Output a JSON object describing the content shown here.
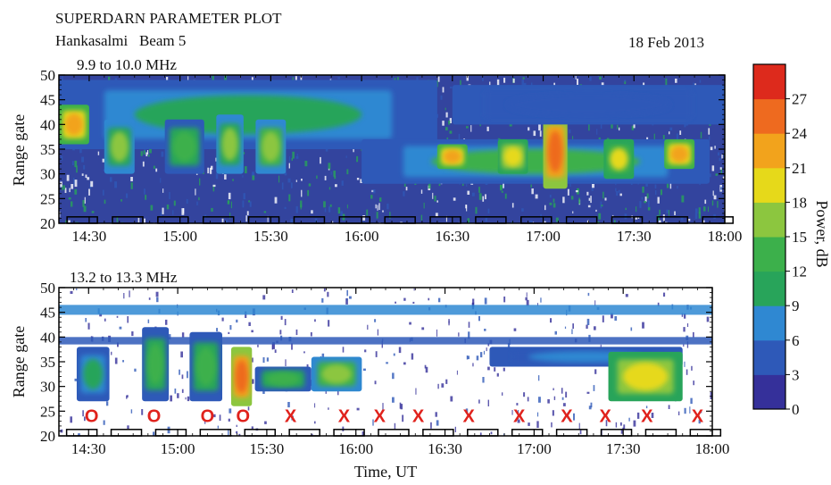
{
  "header": {
    "title": "SUPERDARN PARAMETER PLOT",
    "station": "Hankasalmi   Beam 5",
    "date": "18 Feb 2013"
  },
  "chart_data": [
    {
      "type": "heatmap",
      "freq_label": "9.9 to 10.0 MHz",
      "ylabel": "Range gate",
      "xlabel": "",
      "xlim": [
        "14:20",
        "18:00"
      ],
      "ylim": [
        20,
        50
      ],
      "x_ticks": [
        "14:30",
        "15:00",
        "15:30",
        "16:00",
        "16:30",
        "17:00",
        "17:30",
        "18:00"
      ],
      "y_ticks": [
        "20",
        "25",
        "30",
        "35",
        "40",
        "45",
        "50"
      ],
      "scan_markers": [
        "14:28",
        "14:58",
        "15:28",
        "15:58",
        "16:28",
        "16:58",
        "17:28",
        "17:58"
      ],
      "blobs": [
        {
          "t0": "14:20",
          "t1": "16:25",
          "g0": 35,
          "g1": 49,
          "power": 10
        },
        {
          "t0": "14:20",
          "t1": "14:30",
          "g0": 36,
          "g1": 44,
          "power": 22
        },
        {
          "t0": "14:35",
          "t1": "14:45",
          "g0": 30,
          "g1": 41,
          "power": 15
        },
        {
          "t0": "14:55",
          "t1": "15:08",
          "g0": 30,
          "g1": 41,
          "power": 14
        },
        {
          "t0": "15:12",
          "t1": "15:21",
          "g0": 30,
          "g1": 42,
          "power": 15
        },
        {
          "t0": "15:25",
          "t1": "15:35",
          "g0": 30,
          "g1": 41,
          "power": 17
        },
        {
          "t0": "16:00",
          "t1": "17:55",
          "g0": 28,
          "g1": 37,
          "power": 12
        },
        {
          "t0": "16:25",
          "t1": "16:35",
          "g0": 31,
          "g1": 36,
          "power": 23
        },
        {
          "t0": "16:45",
          "t1": "16:55",
          "g0": 30,
          "g1": 37,
          "power": 20
        },
        {
          "t0": "17:00",
          "t1": "17:08",
          "g0": 27,
          "g1": 42,
          "power": 25
        },
        {
          "t0": "17:20",
          "t1": "17:30",
          "g0": 29,
          "g1": 37,
          "power": 18
        },
        {
          "t0": "17:40",
          "t1": "17:50",
          "g0": 31,
          "g1": 37,
          "power": 22
        },
        {
          "t0": "16:30",
          "t1": "18:00",
          "g0": 40,
          "g1": 48,
          "power": 5
        }
      ]
    },
    {
      "type": "heatmap",
      "freq_label": "13.2 to 13.3 MHz",
      "ylabel": "Range gate",
      "xlabel": "Time, UT",
      "xlim": [
        "14:20",
        "18:00"
      ],
      "ylim": [
        20,
        50
      ],
      "x_ticks": [
        "14:30",
        "15:00",
        "15:30",
        "16:00",
        "16:30",
        "17:00",
        "17:30",
        "18:00"
      ],
      "y_ticks": [
        "20",
        "25",
        "30",
        "35",
        "40",
        "45",
        "50"
      ],
      "scan_markers": [
        "14:28",
        "14:58",
        "15:28",
        "15:58",
        "16:28",
        "16:58",
        "17:28",
        "17:58"
      ],
      "bands": [
        {
          "t0": "14:20",
          "t1": "18:00",
          "g0": 44.5,
          "g1": 46.5,
          "power": 6
        },
        {
          "t0": "14:20",
          "t1": "18:00",
          "g0": 38.5,
          "g1": 40,
          "power": 5
        }
      ],
      "blobs": [
        {
          "t0": "14:26",
          "t1": "14:37",
          "g0": 27,
          "g1": 38,
          "power": 11
        },
        {
          "t0": "14:48",
          "t1": "14:57",
          "g0": 27,
          "g1": 42,
          "power": 14
        },
        {
          "t0": "15:04",
          "t1": "15:15",
          "g0": 27,
          "g1": 41,
          "power": 13
        },
        {
          "t0": "15:18",
          "t1": "15:25",
          "g0": 26,
          "g1": 38,
          "power": 25
        },
        {
          "t0": "15:26",
          "t1": "15:45",
          "g0": 29,
          "g1": 34,
          "power": 13
        },
        {
          "t0": "15:45",
          "t1": "16:02",
          "g0": 29,
          "g1": 36,
          "power": 17
        },
        {
          "t0": "16:45",
          "t1": "17:50",
          "g0": 34,
          "g1": 38,
          "power": 8
        },
        {
          "t0": "17:25",
          "t1": "17:50",
          "g0": 27,
          "g1": 37,
          "power": 20
        }
      ],
      "mode_labels": [
        {
          "t": "14:31",
          "text": "O"
        },
        {
          "t": "14:52",
          "text": "O"
        },
        {
          "t": "15:10",
          "text": "O"
        },
        {
          "t": "15:22",
          "text": "O"
        },
        {
          "t": "15:38",
          "text": "X"
        },
        {
          "t": "15:56",
          "text": "X"
        },
        {
          "t": "16:08",
          "text": "X"
        },
        {
          "t": "16:21",
          "text": "X"
        },
        {
          "t": "16:38",
          "text": "X"
        },
        {
          "t": "16:55",
          "text": "X"
        },
        {
          "t": "17:11",
          "text": "X"
        },
        {
          "t": "17:24",
          "text": "X"
        },
        {
          "t": "17:38",
          "text": "X"
        },
        {
          "t": "17:55",
          "text": "X"
        }
      ]
    }
  ],
  "colorbar": {
    "label": "Power, dB",
    "vmin": 0,
    "vmax": 30,
    "ticks": [
      "0",
      "3",
      "6",
      "9",
      "12",
      "15",
      "18",
      "21",
      "24",
      "27"
    ],
    "colors": [
      "#35309a",
      "#2e59b8",
      "#2f88d2",
      "#28a45a",
      "#3cb04b",
      "#8cc63f",
      "#e6d91a",
      "#f2a31c",
      "#ee6a1f",
      "#dd2a1c"
    ]
  }
}
